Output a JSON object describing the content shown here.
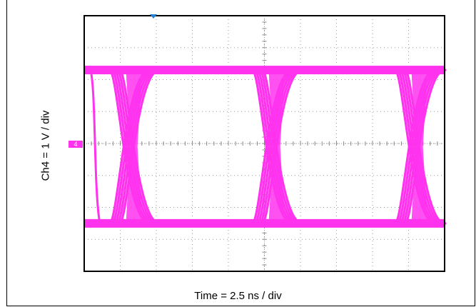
{
  "chart_data": {
    "type": "line",
    "title": "",
    "xlabel": "Time = 2.5 ns / div",
    "ylabel": "Ch4 = 1 V / div",
    "x_divisions": 10,
    "y_divisions": 8,
    "x_unit": "ns",
    "x_per_div": 2.5,
    "y_unit": "V",
    "y_per_div": 1,
    "xlim": [
      0,
      25
    ],
    "ylim": [
      -4,
      4
    ],
    "grid": true,
    "channel_marker": "4",
    "trace_color": "#ff33ee",
    "series": [
      {
        "levels": {
          "high": 2.3,
          "low": -2.5
        },
        "crossings_ns": [
          3.5,
          13.4,
          23.3
        ],
        "transition_width_ns": 2.0
      }
    ]
  }
}
